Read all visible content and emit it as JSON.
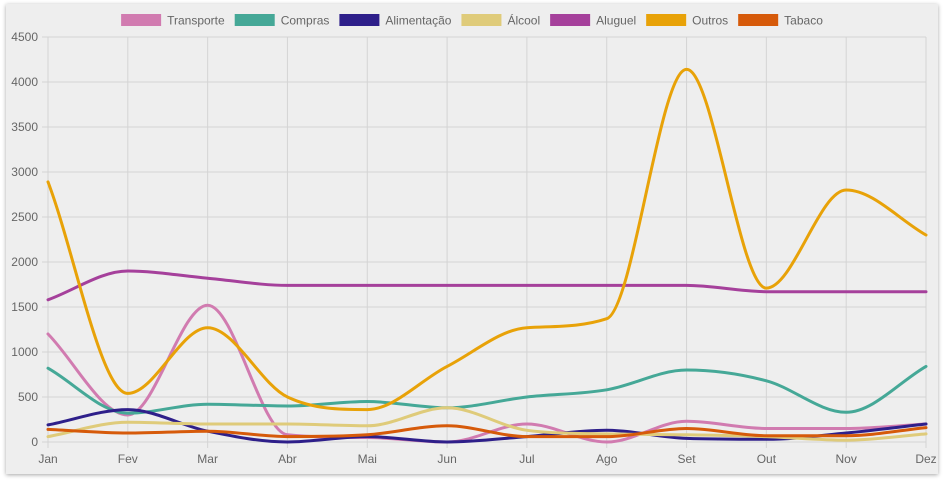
{
  "chart_data": {
    "type": "line",
    "title": "",
    "xlabel": "",
    "ylabel": "",
    "categories": [
      "Jan",
      "Fev",
      "Mar",
      "Abr",
      "Mai",
      "Jun",
      "Jul",
      "Ago",
      "Set",
      "Out",
      "Nov",
      "Dez"
    ],
    "ylim": [
      0,
      4500
    ],
    "yticks": [
      0,
      500,
      1000,
      1500,
      2000,
      2500,
      3000,
      3500,
      4000,
      4500
    ],
    "grid": true,
    "legend_position": "top",
    "curve": "smooth",
    "series": [
      {
        "name": "Transporte",
        "color": "#d17bb0",
        "values": [
          1200,
          300,
          1520,
          80,
          50,
          0,
          200,
          0,
          230,
          150,
          150,
          200
        ]
      },
      {
        "name": "Compras",
        "color": "#45a897",
        "values": [
          820,
          320,
          420,
          400,
          450,
          380,
          500,
          580,
          800,
          680,
          330,
          840
        ]
      },
      {
        "name": "Alimentação",
        "color": "#2e1f8a",
        "values": [
          190,
          360,
          120,
          0,
          60,
          0,
          60,
          130,
          40,
          30,
          100,
          200
        ]
      },
      {
        "name": "Álcool",
        "color": "#dfcb7a",
        "values": [
          60,
          220,
          200,
          200,
          180,
          380,
          130,
          90,
          80,
          60,
          20,
          90
        ]
      },
      {
        "name": "Aluguel",
        "color": "#a5409b",
        "values": [
          1580,
          1900,
          1820,
          1740,
          1740,
          1740,
          1740,
          1740,
          1740,
          1670,
          1670,
          1670
        ]
      },
      {
        "name": "Outros",
        "color": "#e8a208",
        "values": [
          2890,
          540,
          1270,
          500,
          360,
          840,
          1270,
          1370,
          4140,
          1710,
          2800,
          2300
        ]
      },
      {
        "name": "Tabaco",
        "color": "#d65a0a",
        "values": [
          140,
          100,
          120,
          60,
          80,
          180,
          60,
          60,
          150,
          70,
          70,
          160
        ]
      }
    ]
  }
}
